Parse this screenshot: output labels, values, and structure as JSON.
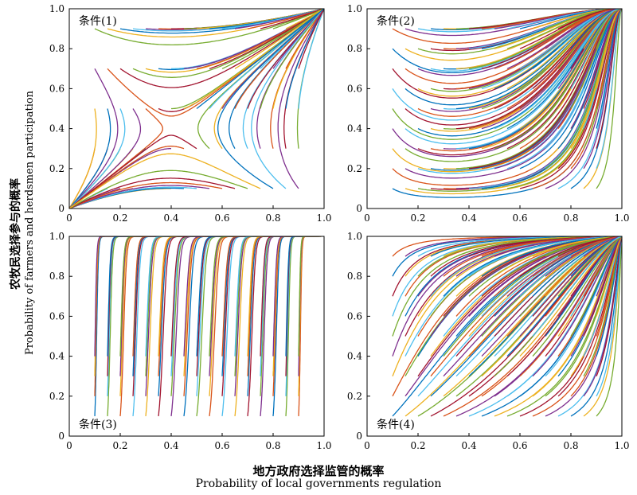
{
  "chart_data": {
    "xlabel_cn": "地方政府选择监管的概率",
    "xlabel_en": "Probability of local governments regulation",
    "ylabel_cn": "农牧民选择参与的概率",
    "ylabel_en": "Probability of farmers and herdsmen participation",
    "tick_labels": [
      "0",
      "0.2",
      "0.4",
      "0.6",
      "0.8",
      "1.0"
    ],
    "palette": [
      "#0072BD",
      "#D95319",
      "#EDB120",
      "#7E2F8E",
      "#77AC30",
      "#4DBEEE",
      "#A2142F"
    ],
    "panels": [
      {
        "type": "line",
        "label": "条件(1)",
        "dynamics": "saddle",
        "xlim": [
          0,
          1
        ],
        "ylim": [
          0,
          1
        ],
        "saddle": [
          0.4,
          0.4
        ],
        "x_ticks": [
          0,
          0.2,
          0.4,
          0.6,
          0.8,
          1.0
        ],
        "y_ticks": [
          0,
          0.2,
          0.4,
          0.6,
          0.8,
          1.0
        ]
      },
      {
        "type": "line",
        "label": "条件(2)",
        "dynamics": "converge_to_1_1_curved",
        "xlim": [
          0,
          1
        ],
        "ylim": [
          0,
          1
        ],
        "x_ticks": [
          0,
          0.2,
          0.4,
          0.6,
          0.8,
          1.0
        ],
        "y_ticks": [
          0,
          0.2,
          0.4,
          0.6,
          0.8,
          1.0
        ]
      },
      {
        "type": "line",
        "label": "条件(3)",
        "dynamics": "vertical_rise",
        "xlim": [
          0,
          1
        ],
        "ylim": [
          0,
          1
        ],
        "x_ticks": [
          0,
          0.2,
          0.4,
          0.6,
          0.8,
          1.0
        ],
        "y_ticks": [
          0,
          0.2,
          0.4,
          0.6,
          0.8,
          1.0
        ]
      },
      {
        "type": "line",
        "label": "条件(4)",
        "dynamics": "converge_to_1_1_diagonal",
        "xlim": [
          0,
          1
        ],
        "ylim": [
          0,
          1
        ],
        "x_ticks": [
          0,
          0.2,
          0.4,
          0.6,
          0.8,
          1.0
        ],
        "y_ticks": [
          0,
          0.2,
          0.4,
          0.6,
          0.8,
          1.0
        ]
      }
    ]
  }
}
